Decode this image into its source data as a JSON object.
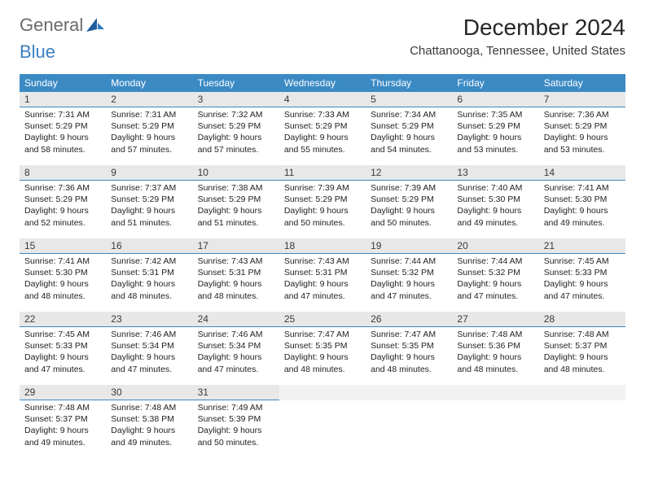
{
  "logo": {
    "text1": "General",
    "text2": "Blue"
  },
  "title": "December 2024",
  "subtitle": "Chattanooga, Tennessee, United States",
  "colors": {
    "header_bg": "#3b8ac4",
    "header_fg": "#ffffff",
    "daynum_bg": "#e8e8e8",
    "daynum_border": "#3b8ac4",
    "empty_bg": "#f2f2f2"
  },
  "weekdays": [
    "Sunday",
    "Monday",
    "Tuesday",
    "Wednesday",
    "Thursday",
    "Friday",
    "Saturday"
  ],
  "weeks": [
    [
      {
        "n": "1",
        "sr": "Sunrise: 7:31 AM",
        "ss": "Sunset: 5:29 PM",
        "d1": "Daylight: 9 hours",
        "d2": "and 58 minutes."
      },
      {
        "n": "2",
        "sr": "Sunrise: 7:31 AM",
        "ss": "Sunset: 5:29 PM",
        "d1": "Daylight: 9 hours",
        "d2": "and 57 minutes."
      },
      {
        "n": "3",
        "sr": "Sunrise: 7:32 AM",
        "ss": "Sunset: 5:29 PM",
        "d1": "Daylight: 9 hours",
        "d2": "and 57 minutes."
      },
      {
        "n": "4",
        "sr": "Sunrise: 7:33 AM",
        "ss": "Sunset: 5:29 PM",
        "d1": "Daylight: 9 hours",
        "d2": "and 55 minutes."
      },
      {
        "n": "5",
        "sr": "Sunrise: 7:34 AM",
        "ss": "Sunset: 5:29 PM",
        "d1": "Daylight: 9 hours",
        "d2": "and 54 minutes."
      },
      {
        "n": "6",
        "sr": "Sunrise: 7:35 AM",
        "ss": "Sunset: 5:29 PM",
        "d1": "Daylight: 9 hours",
        "d2": "and 53 minutes."
      },
      {
        "n": "7",
        "sr": "Sunrise: 7:36 AM",
        "ss": "Sunset: 5:29 PM",
        "d1": "Daylight: 9 hours",
        "d2": "and 53 minutes."
      }
    ],
    [
      {
        "n": "8",
        "sr": "Sunrise: 7:36 AM",
        "ss": "Sunset: 5:29 PM",
        "d1": "Daylight: 9 hours",
        "d2": "and 52 minutes."
      },
      {
        "n": "9",
        "sr": "Sunrise: 7:37 AM",
        "ss": "Sunset: 5:29 PM",
        "d1": "Daylight: 9 hours",
        "d2": "and 51 minutes."
      },
      {
        "n": "10",
        "sr": "Sunrise: 7:38 AM",
        "ss": "Sunset: 5:29 PM",
        "d1": "Daylight: 9 hours",
        "d2": "and 51 minutes."
      },
      {
        "n": "11",
        "sr": "Sunrise: 7:39 AM",
        "ss": "Sunset: 5:29 PM",
        "d1": "Daylight: 9 hours",
        "d2": "and 50 minutes."
      },
      {
        "n": "12",
        "sr": "Sunrise: 7:39 AM",
        "ss": "Sunset: 5:29 PM",
        "d1": "Daylight: 9 hours",
        "d2": "and 50 minutes."
      },
      {
        "n": "13",
        "sr": "Sunrise: 7:40 AM",
        "ss": "Sunset: 5:30 PM",
        "d1": "Daylight: 9 hours",
        "d2": "and 49 minutes."
      },
      {
        "n": "14",
        "sr": "Sunrise: 7:41 AM",
        "ss": "Sunset: 5:30 PM",
        "d1": "Daylight: 9 hours",
        "d2": "and 49 minutes."
      }
    ],
    [
      {
        "n": "15",
        "sr": "Sunrise: 7:41 AM",
        "ss": "Sunset: 5:30 PM",
        "d1": "Daylight: 9 hours",
        "d2": "and 48 minutes."
      },
      {
        "n": "16",
        "sr": "Sunrise: 7:42 AM",
        "ss": "Sunset: 5:31 PM",
        "d1": "Daylight: 9 hours",
        "d2": "and 48 minutes."
      },
      {
        "n": "17",
        "sr": "Sunrise: 7:43 AM",
        "ss": "Sunset: 5:31 PM",
        "d1": "Daylight: 9 hours",
        "d2": "and 48 minutes."
      },
      {
        "n": "18",
        "sr": "Sunrise: 7:43 AM",
        "ss": "Sunset: 5:31 PM",
        "d1": "Daylight: 9 hours",
        "d2": "and 47 minutes."
      },
      {
        "n": "19",
        "sr": "Sunrise: 7:44 AM",
        "ss": "Sunset: 5:32 PM",
        "d1": "Daylight: 9 hours",
        "d2": "and 47 minutes."
      },
      {
        "n": "20",
        "sr": "Sunrise: 7:44 AM",
        "ss": "Sunset: 5:32 PM",
        "d1": "Daylight: 9 hours",
        "d2": "and 47 minutes."
      },
      {
        "n": "21",
        "sr": "Sunrise: 7:45 AM",
        "ss": "Sunset: 5:33 PM",
        "d1": "Daylight: 9 hours",
        "d2": "and 47 minutes."
      }
    ],
    [
      {
        "n": "22",
        "sr": "Sunrise: 7:45 AM",
        "ss": "Sunset: 5:33 PM",
        "d1": "Daylight: 9 hours",
        "d2": "and 47 minutes."
      },
      {
        "n": "23",
        "sr": "Sunrise: 7:46 AM",
        "ss": "Sunset: 5:34 PM",
        "d1": "Daylight: 9 hours",
        "d2": "and 47 minutes."
      },
      {
        "n": "24",
        "sr": "Sunrise: 7:46 AM",
        "ss": "Sunset: 5:34 PM",
        "d1": "Daylight: 9 hours",
        "d2": "and 47 minutes."
      },
      {
        "n": "25",
        "sr": "Sunrise: 7:47 AM",
        "ss": "Sunset: 5:35 PM",
        "d1": "Daylight: 9 hours",
        "d2": "and 48 minutes."
      },
      {
        "n": "26",
        "sr": "Sunrise: 7:47 AM",
        "ss": "Sunset: 5:35 PM",
        "d1": "Daylight: 9 hours",
        "d2": "and 48 minutes."
      },
      {
        "n": "27",
        "sr": "Sunrise: 7:48 AM",
        "ss": "Sunset: 5:36 PM",
        "d1": "Daylight: 9 hours",
        "d2": "and 48 minutes."
      },
      {
        "n": "28",
        "sr": "Sunrise: 7:48 AM",
        "ss": "Sunset: 5:37 PM",
        "d1": "Daylight: 9 hours",
        "d2": "and 48 minutes."
      }
    ],
    [
      {
        "n": "29",
        "sr": "Sunrise: 7:48 AM",
        "ss": "Sunset: 5:37 PM",
        "d1": "Daylight: 9 hours",
        "d2": "and 49 minutes."
      },
      {
        "n": "30",
        "sr": "Sunrise: 7:48 AM",
        "ss": "Sunset: 5:38 PM",
        "d1": "Daylight: 9 hours",
        "d2": "and 49 minutes."
      },
      {
        "n": "31",
        "sr": "Sunrise: 7:49 AM",
        "ss": "Sunset: 5:39 PM",
        "d1": "Daylight: 9 hours",
        "d2": "and 50 minutes."
      },
      null,
      null,
      null,
      null
    ]
  ]
}
